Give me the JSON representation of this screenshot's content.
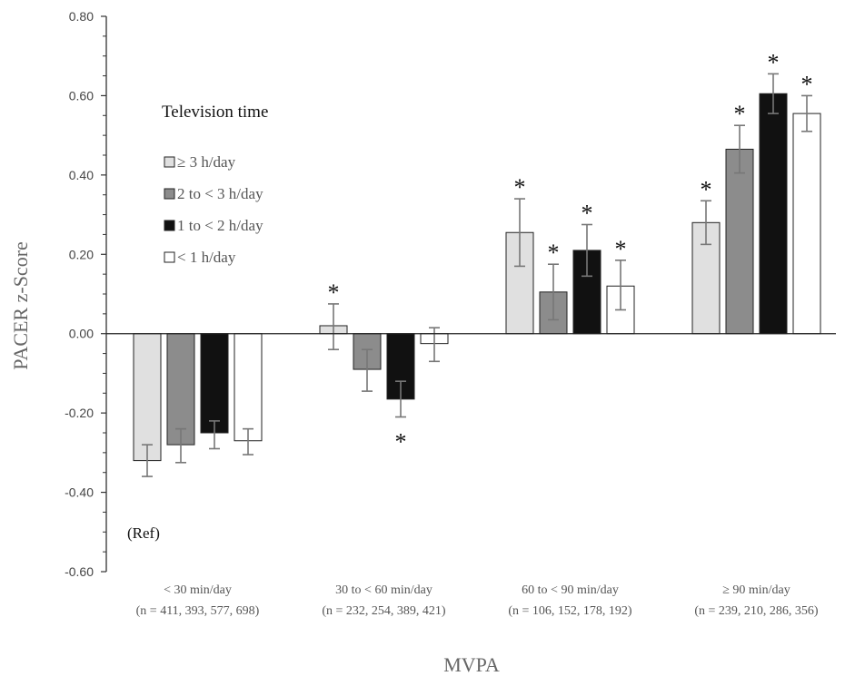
{
  "chart_data": {
    "type": "bar",
    "title": "",
    "xlabel": "MVPA",
    "ylabel": "PACER z-Score",
    "ylim": [
      -0.6,
      0.8
    ],
    "yticks": [
      "0.80",
      "0.60",
      "0.40",
      "0.20",
      "0.00",
      "-0.20",
      "-0.40",
      "-0.60"
    ],
    "ytick_values": [
      0.8,
      0.6,
      0.4,
      0.2,
      0.0,
      -0.2,
      -0.4,
      -0.6
    ],
    "categories": [
      {
        "line1": "< 30 min/day",
        "line2": "(n = 411, 393, 577, 698)"
      },
      {
        "line1": "30 to < 60 min/day",
        "line2": "(n = 232, 254, 389, 421)"
      },
      {
        "line1": "60 to < 90 min/day",
        "line2": "(n = 106, 152, 178, 192)"
      },
      {
        "line1": "≥ 90 min/day",
        "line2": "(n = 239, 210, 286, 356)"
      }
    ],
    "legend_title": "Television time",
    "legend_position": "upper-left",
    "series": [
      {
        "name": "≥ 3 h/day",
        "color": "#e0e0e0",
        "values": [
          -0.32,
          0.02,
          0.255,
          0.28
        ],
        "err_low": [
          -0.36,
          -0.04,
          0.17,
          0.225
        ],
        "err_high": [
          -0.28,
          0.075,
          0.34,
          0.335
        ],
        "sig": [
          false,
          true,
          true,
          true
        ]
      },
      {
        "name": "2 to < 3 h/day",
        "color": "#8c8c8c",
        "values": [
          -0.28,
          -0.09,
          0.105,
          0.465
        ],
        "err_low": [
          -0.325,
          -0.145,
          0.035,
          0.405
        ],
        "err_high": [
          -0.24,
          -0.04,
          0.175,
          0.525
        ],
        "sig": [
          false,
          false,
          true,
          true
        ]
      },
      {
        "name": "1 to < 2 h/day",
        "color": "#111111",
        "values": [
          -0.25,
          -0.165,
          0.21,
          0.605
        ],
        "err_low": [
          -0.29,
          -0.21,
          0.145,
          0.555
        ],
        "err_high": [
          -0.22,
          -0.12,
          0.275,
          0.655
        ],
        "sig": [
          false,
          true,
          true,
          true
        ]
      },
      {
        "name": "< 1 h/day",
        "color": "#ffffff",
        "values": [
          -0.27,
          -0.025,
          0.12,
          0.555
        ],
        "err_low": [
          -0.305,
          -0.07,
          0.06,
          0.51
        ],
        "err_high": [
          -0.24,
          0.015,
          0.185,
          0.6
        ],
        "sig": [
          false,
          false,
          true,
          true
        ]
      }
    ],
    "significance_marker": "*",
    "annotation": "(Ref)",
    "grid": false
  }
}
